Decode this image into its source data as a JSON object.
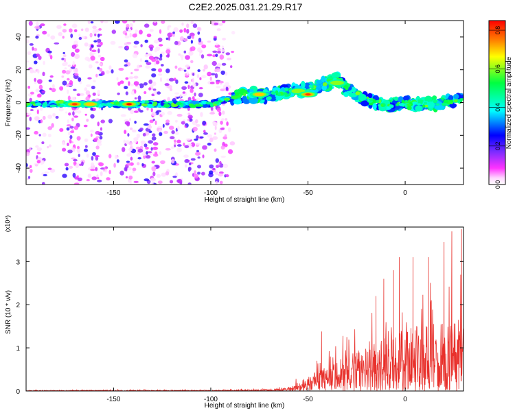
{
  "title": "C2E2.2025.031.21.29.R17",
  "chart_data": [
    {
      "type": "heatmap",
      "xlabel": "Height of straight line (km)",
      "ylabel": "Frequency (Hz)",
      "xlim": [
        -195,
        30
      ],
      "ylim": [
        -50,
        50
      ],
      "xticks": [
        -150,
        -100,
        -50,
        0
      ],
      "yticks": [
        -40,
        -20,
        0,
        20,
        40
      ],
      "colorbar": {
        "label": "Normalized spectral amplitude",
        "range": [
          0.0,
          0.85
        ],
        "ticks": [
          0.0,
          0.2,
          0.4,
          0.6,
          0.8
        ],
        "colormap": [
          "#ffffff",
          "#ff00ff",
          "#7b2cff",
          "#0000ff",
          "#00ffff",
          "#00ff40",
          "#ffff00",
          "#ff8000",
          "#ff0000"
        ]
      },
      "ridge": {
        "x": [
          -195,
          -180,
          -170,
          -150,
          -140,
          -120,
          -105,
          -100,
          -90,
          -80,
          -70,
          -60,
          -50,
          -40,
          -35,
          -30,
          -20,
          -10,
          0,
          10,
          20,
          30
        ],
        "y": [
          -1,
          -1,
          -1,
          -1,
          -1,
          -1,
          -1,
          -1,
          3,
          5,
          4,
          7,
          8,
          12,
          14,
          8,
          2,
          -2,
          0,
          -1,
          0,
          2
        ]
      },
      "peaks": [
        {
          "x": -170,
          "y": -1,
          "amplitude": 0.8
        },
        {
          "x": -162,
          "y": -1,
          "amplitude": 0.7
        },
        {
          "x": -142,
          "y": -1,
          "amplitude": 0.85
        },
        {
          "x": -75,
          "y": 5,
          "amplitude": 0.7
        },
        {
          "x": -55,
          "y": 7,
          "amplitude": 0.6
        },
        {
          "x": -50,
          "y": 5,
          "amplitude": 0.8
        },
        {
          "x": -35,
          "y": 12,
          "amplitude": 0.6
        }
      ],
      "noise_band_x": [
        -195,
        -88
      ]
    },
    {
      "type": "line",
      "xlabel": "Height of straight line (km)",
      "ylabel": "SNR (10 * v/v)",
      "y_multiplier": "(x10⁴)",
      "xlim": [
        -195,
        30
      ],
      "ylim": [
        0,
        3.8
      ],
      "xticks": [
        -150,
        -100,
        -50,
        0
      ],
      "yticks": [
        0,
        1,
        2,
        3
      ],
      "series": [
        {
          "color": "#e8302b",
          "x": [
            -195,
            -150,
            -100,
            -70,
            -60,
            -55,
            -50,
            -45,
            -40,
            -35,
            -30,
            -25,
            -20,
            -15,
            -10,
            -5,
            0,
            5,
            10,
            15,
            20,
            25,
            30
          ],
          "y": [
            0.01,
            0.02,
            0.02,
            0.04,
            0.08,
            0.2,
            0.35,
            0.45,
            0.55,
            0.7,
            0.85,
            0.95,
            1.05,
            1.15,
            1.25,
            1.35,
            1.45,
            1.5,
            1.55,
            1.6,
            1.65,
            1.7,
            1.75
          ],
          "peaks": [
            {
              "x": -43,
              "y": 1.38
            },
            {
              "x": -30,
              "y": 1.25
            },
            {
              "x": -15,
              "y": 2.2
            },
            {
              "x": -11,
              "y": 2.6
            },
            {
              "x": -6,
              "y": 2.8
            },
            {
              "x": -3,
              "y": 3.1
            },
            {
              "x": 4,
              "y": 3.1
            },
            {
              "x": 12,
              "y": 3.1
            },
            {
              "x": 20,
              "y": 3.45
            },
            {
              "x": 24,
              "y": 3.7
            },
            {
              "x": 29,
              "y": 3.75
            }
          ]
        }
      ]
    }
  ]
}
